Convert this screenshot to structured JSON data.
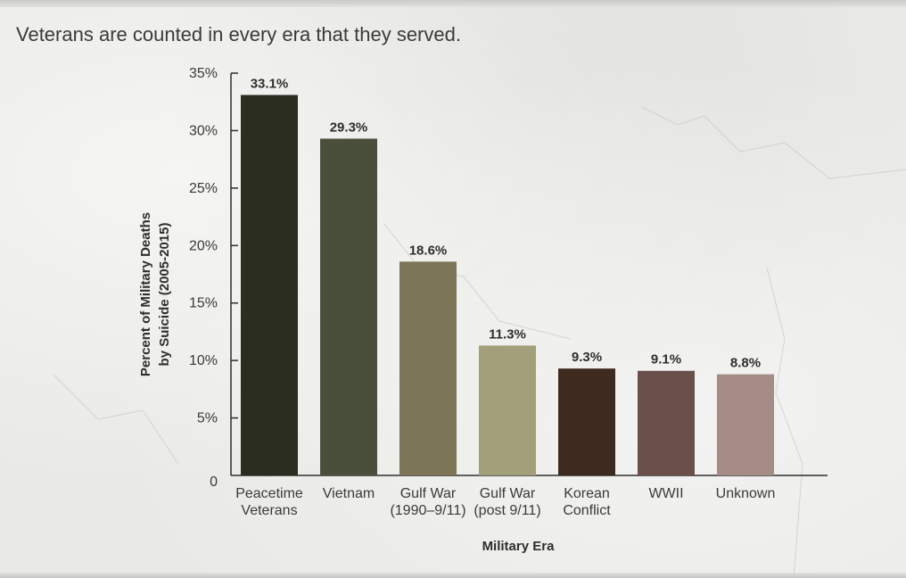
{
  "subtitle": "Veterans are counted in every era that they served.",
  "chart_data": {
    "type": "bar",
    "title": "",
    "subtitle": "Veterans are counted in every era that they served.",
    "xlabel": "Military Era",
    "ylabel": [
      "Percent of Military Deaths",
      "by Suicide (2005-2015)"
    ],
    "ylim": [
      0,
      35
    ],
    "yticks": [
      {
        "value": 0,
        "label": "0"
      },
      {
        "value": 5,
        "label": "5%"
      },
      {
        "value": 10,
        "label": "10%"
      },
      {
        "value": 15,
        "label": "15%"
      },
      {
        "value": 20,
        "label": "20%"
      },
      {
        "value": 25,
        "label": "25%"
      },
      {
        "value": 30,
        "label": "30%"
      },
      {
        "value": 35,
        "label": "35%"
      }
    ],
    "grid": false,
    "legend": "none",
    "categories": [
      [
        "Peacetime",
        "Veterans"
      ],
      [
        "Vietnam"
      ],
      [
        "Gulf War",
        "(1990–9/11)"
      ],
      [
        "Gulf War",
        "(post 9/11)"
      ],
      [
        "Korean",
        "Conflict"
      ],
      [
        "WWII"
      ],
      [
        "Unknown"
      ]
    ],
    "values": [
      33.1,
      29.3,
      18.6,
      11.3,
      9.3,
      9.1,
      8.8
    ],
    "value_labels": [
      "33.1%",
      "29.3%",
      "18.6%",
      "11.3%",
      "9.3%",
      "9.1%",
      "8.8%"
    ],
    "colors": [
      "#2b2d20",
      "#4a4f3c",
      "#7b7556",
      "#a49f7b",
      "#3f2a20",
      "#6b4f4b",
      "#a58c86"
    ]
  }
}
